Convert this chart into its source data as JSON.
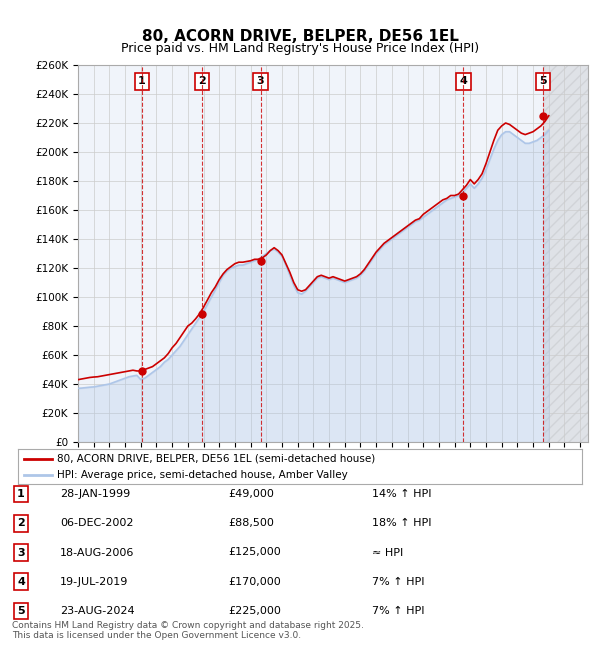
{
  "title": "80, ACORN DRIVE, BELPER, DE56 1EL",
  "subtitle": "Price paid vs. HM Land Registry's House Price Index (HPI)",
  "ylabel_ticks": [
    "£0",
    "£20K",
    "£40K",
    "£60K",
    "£80K",
    "£100K",
    "£120K",
    "£140K",
    "£160K",
    "£180K",
    "£200K",
    "£220K",
    "£240K",
    "£260K"
  ],
  "ylim": [
    0,
    260000
  ],
  "xlim_start": 1995.0,
  "xlim_end": 2027.5,
  "legend_line1": "80, ACORN DRIVE, BELPER, DE56 1EL (semi-detached house)",
  "legend_line2": "HPI: Average price, semi-detached house, Amber Valley",
  "sales": [
    {
      "num": 1,
      "date": "28-JAN-1999",
      "price": 49000,
      "label": "14% ↑ HPI",
      "year": 1999.07
    },
    {
      "num": 2,
      "date": "06-DEC-2002",
      "price": 88500,
      "label": "18% ↑ HPI",
      "year": 2002.92
    },
    {
      "num": 3,
      "date": "18-AUG-2006",
      "price": 125000,
      "label": "≈ HPI",
      "year": 2006.63
    },
    {
      "num": 4,
      "date": "19-JUL-2019",
      "price": 170000,
      "label": "7% ↑ HPI",
      "year": 2019.55
    },
    {
      "num": 5,
      "date": "23-AUG-2024",
      "price": 225000,
      "label": "7% ↑ HPI",
      "year": 2024.64
    }
  ],
  "hpi_line_color": "#aec6e8",
  "price_line_color": "#cc0000",
  "grid_color": "#cccccc",
  "bg_color": "#e8f0f8",
  "plot_bg": "#f0f4fa",
  "footer": "Contains HM Land Registry data © Crown copyright and database right 2025.\nThis data is licensed under the Open Government Licence v3.0.",
  "hpi_data": {
    "years": [
      1995.0,
      1995.25,
      1995.5,
      1995.75,
      1996.0,
      1996.25,
      1996.5,
      1996.75,
      1997.0,
      1997.25,
      1997.5,
      1997.75,
      1998.0,
      1998.25,
      1998.5,
      1998.75,
      1999.0,
      1999.25,
      1999.5,
      1999.75,
      2000.0,
      2000.25,
      2000.5,
      2000.75,
      2001.0,
      2001.25,
      2001.5,
      2001.75,
      2002.0,
      2002.25,
      2002.5,
      2002.75,
      2003.0,
      2003.25,
      2003.5,
      2003.75,
      2004.0,
      2004.25,
      2004.5,
      2004.75,
      2005.0,
      2005.25,
      2005.5,
      2005.75,
      2006.0,
      2006.25,
      2006.5,
      2006.75,
      2007.0,
      2007.25,
      2007.5,
      2007.75,
      2008.0,
      2008.25,
      2008.5,
      2008.75,
      2009.0,
      2009.25,
      2009.5,
      2009.75,
      2010.0,
      2010.25,
      2010.5,
      2010.75,
      2011.0,
      2011.25,
      2011.5,
      2011.75,
      2012.0,
      2012.25,
      2012.5,
      2012.75,
      2013.0,
      2013.25,
      2013.5,
      2013.75,
      2014.0,
      2014.25,
      2014.5,
      2014.75,
      2015.0,
      2015.25,
      2015.5,
      2015.75,
      2016.0,
      2016.25,
      2016.5,
      2016.75,
      2017.0,
      2017.25,
      2017.5,
      2017.75,
      2018.0,
      2018.25,
      2018.5,
      2018.75,
      2019.0,
      2019.25,
      2019.5,
      2019.75,
      2020.0,
      2020.25,
      2020.5,
      2020.75,
      2021.0,
      2021.25,
      2021.5,
      2021.75,
      2022.0,
      2022.25,
      2022.5,
      2022.75,
      2023.0,
      2023.25,
      2023.5,
      2023.75,
      2024.0,
      2024.25,
      2024.5,
      2024.75,
      2025.0
    ],
    "values": [
      37000,
      37200,
      37500,
      37800,
      38000,
      38500,
      39000,
      39500,
      40000,
      41000,
      42000,
      43000,
      44000,
      45000,
      45500,
      46000,
      43000,
      44000,
      46000,
      48000,
      50000,
      52000,
      55000,
      57000,
      60000,
      63000,
      66000,
      70000,
      74000,
      78000,
      82000,
      86000,
      90000,
      95000,
      100000,
      105000,
      110000,
      115000,
      118000,
      120000,
      121000,
      122000,
      122000,
      123000,
      124000,
      125000,
      126000,
      128000,
      130000,
      132000,
      133000,
      131000,
      128000,
      122000,
      115000,
      108000,
      103000,
      102000,
      104000,
      107000,
      110000,
      113000,
      114000,
      113000,
      112000,
      113000,
      112000,
      111000,
      110000,
      111000,
      112000,
      113000,
      115000,
      118000,
      122000,
      126000,
      130000,
      133000,
      136000,
      138000,
      140000,
      142000,
      144000,
      146000,
      148000,
      150000,
      152000,
      153000,
      155000,
      157000,
      159000,
      161000,
      163000,
      165000,
      167000,
      168000,
      169000,
      170000,
      172000,
      175000,
      178000,
      175000,
      178000,
      182000,
      188000,
      195000,
      202000,
      208000,
      212000,
      214000,
      214000,
      212000,
      210000,
      208000,
      206000,
      206000,
      207000,
      208000,
      210000,
      212000,
      215000
    ]
  },
  "price_data": {
    "years": [
      1995.0,
      1995.25,
      1995.5,
      1995.75,
      1996.0,
      1996.25,
      1996.5,
      1996.75,
      1997.0,
      1997.25,
      1997.5,
      1997.75,
      1998.0,
      1998.25,
      1998.5,
      1998.75,
      1999.0,
      1999.25,
      1999.5,
      1999.75,
      2000.0,
      2000.25,
      2000.5,
      2000.75,
      2001.0,
      2001.25,
      2001.5,
      2001.75,
      2002.0,
      2002.25,
      2002.5,
      2002.75,
      2003.0,
      2003.25,
      2003.5,
      2003.75,
      2004.0,
      2004.25,
      2004.5,
      2004.75,
      2005.0,
      2005.25,
      2005.5,
      2005.75,
      2006.0,
      2006.25,
      2006.5,
      2006.75,
      2007.0,
      2007.25,
      2007.5,
      2007.75,
      2008.0,
      2008.25,
      2008.5,
      2008.75,
      2009.0,
      2009.25,
      2009.5,
      2009.75,
      2010.0,
      2010.25,
      2010.5,
      2010.75,
      2011.0,
      2011.25,
      2011.5,
      2011.75,
      2012.0,
      2012.25,
      2012.5,
      2012.75,
      2013.0,
      2013.25,
      2013.5,
      2013.75,
      2014.0,
      2014.25,
      2014.5,
      2014.75,
      2015.0,
      2015.25,
      2015.5,
      2015.75,
      2016.0,
      2016.25,
      2016.5,
      2016.75,
      2017.0,
      2017.25,
      2017.5,
      2017.75,
      2018.0,
      2018.25,
      2018.5,
      2018.75,
      2019.0,
      2019.25,
      2019.5,
      2019.75,
      2020.0,
      2020.25,
      2020.5,
      2020.75,
      2021.0,
      2021.25,
      2021.5,
      2021.75,
      2022.0,
      2022.25,
      2022.5,
      2022.75,
      2023.0,
      2023.25,
      2023.5,
      2023.75,
      2024.0,
      2024.25,
      2024.5,
      2024.75,
      2025.0
    ],
    "values": [
      43000,
      43500,
      44000,
      44500,
      44800,
      45000,
      45500,
      46000,
      46500,
      47000,
      47500,
      48000,
      48500,
      49000,
      49500,
      49000,
      49000,
      50000,
      51000,
      52000,
      54000,
      56000,
      58000,
      61000,
      65000,
      68000,
      72000,
      76000,
      80000,
      82000,
      85000,
      88500,
      93000,
      98000,
      103000,
      107000,
      112000,
      116000,
      119000,
      121000,
      123000,
      124000,
      124000,
      124500,
      125000,
      126000,
      126000,
      127000,
      129000,
      132000,
      134000,
      132000,
      129000,
      123000,
      117000,
      110000,
      105000,
      104000,
      105000,
      108000,
      111000,
      114000,
      115000,
      114000,
      113000,
      114000,
      113000,
      112000,
      111000,
      112000,
      113000,
      114000,
      116000,
      119000,
      123000,
      127000,
      131000,
      134000,
      137000,
      139000,
      141000,
      143000,
      145000,
      147000,
      149000,
      151000,
      153000,
      154000,
      157000,
      159000,
      161000,
      163000,
      165000,
      167000,
      168000,
      170000,
      170000,
      171000,
      174000,
      177000,
      181000,
      178000,
      181000,
      185000,
      192000,
      200000,
      208000,
      215000,
      218000,
      220000,
      219000,
      217000,
      215000,
      213000,
      212000,
      213000,
      214000,
      216000,
      218000,
      221000,
      225000
    ]
  }
}
